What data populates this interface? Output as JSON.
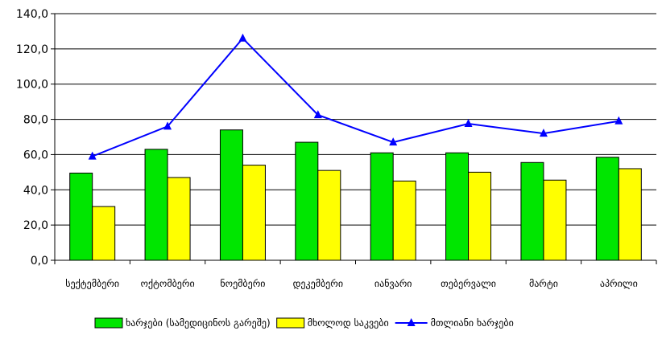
{
  "chart_data": {
    "type": "bar",
    "categories": [
      "სექტემბერი",
      "ოქტომბერი",
      "ნოემბერი",
      "დეკემბერი",
      "იანვარი",
      "თებერვალი",
      "მარტი",
      "აპრილი"
    ],
    "series": [
      {
        "name": "ხარჯები (სამედიცინოს გარეშე)",
        "type": "bar",
        "color": "#00e600",
        "values": [
          49.5,
          63.0,
          74.0,
          67.0,
          61.0,
          61.0,
          55.5,
          58.5
        ]
      },
      {
        "name": "მხოლოდ საკვები",
        "type": "bar",
        "color": "#ffff00",
        "values": [
          30.5,
          47.0,
          54.0,
          51.0,
          45.0,
          50.0,
          45.5,
          52.0
        ]
      },
      {
        "name": "მთლიანი ხარჯები",
        "type": "line",
        "color": "#0000ff",
        "marker": "triangle",
        "values": [
          59.0,
          76.0,
          126.0,
          82.5,
          67.0,
          77.5,
          72.0,
          79.0
        ]
      }
    ],
    "yticks": [
      "0,0",
      "20,0",
      "40,0",
      "60,0",
      "80,0",
      "100,0",
      "120,0",
      "140,0"
    ],
    "ylim": [
      0,
      140
    ],
    "title": "",
    "xlabel": "",
    "ylabel": "",
    "grid": "horizontal",
    "legend_position": "bottom"
  }
}
